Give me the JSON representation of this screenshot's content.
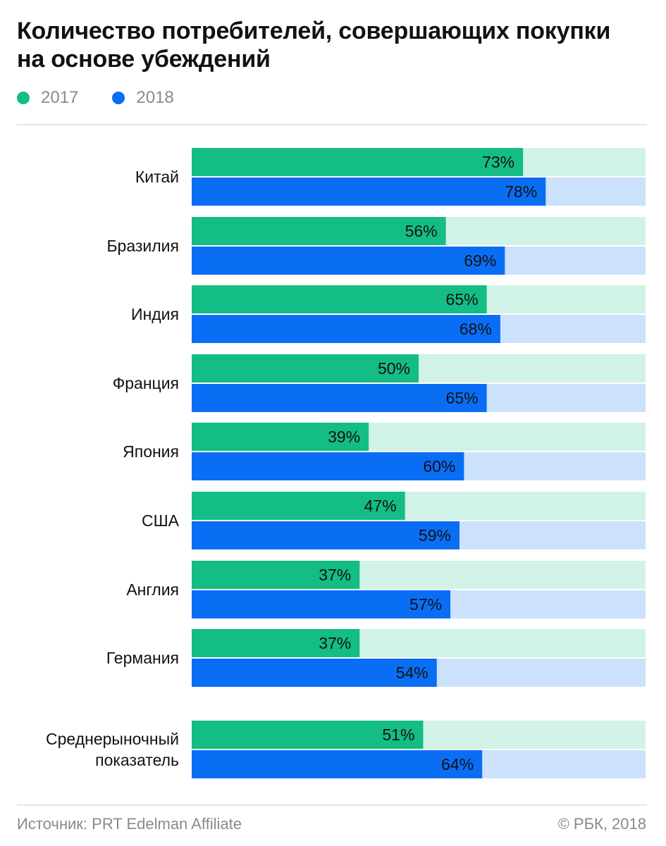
{
  "title": "Количество потребителей, совершающих покупки на основе убеждений",
  "legend": [
    {
      "label": "2017",
      "color": "#14bc86"
    },
    {
      "label": "2018",
      "color": "#0a6ef5"
    }
  ],
  "colors": {
    "track_2017": "#d1f2e7",
    "track_2018": "#cce1fb"
  },
  "chart_data": {
    "type": "bar",
    "orientation": "horizontal",
    "categories": [
      "Китай",
      "Бразилия",
      "Индия",
      "Франция",
      "Япония",
      "США",
      "Англия",
      "Германия",
      "Среднерыночный показатель"
    ],
    "category_label_lines": [
      [
        "Китай"
      ],
      [
        "Бразилия"
      ],
      [
        "Индия"
      ],
      [
        "Франция"
      ],
      [
        "Япония"
      ],
      [
        "США"
      ],
      [
        "Англия"
      ],
      [
        "Германия"
      ],
      [
        "Среднерыночный",
        "показатель"
      ]
    ],
    "series": [
      {
        "name": "2017",
        "values": [
          73,
          56,
          65,
          50,
          39,
          47,
          37,
          37,
          51
        ]
      },
      {
        "name": "2018",
        "values": [
          78,
          69,
          68,
          65,
          60,
          59,
          57,
          54,
          64
        ]
      }
    ],
    "value_suffix": "%",
    "xlim": [
      0,
      100
    ],
    "grid": false,
    "legend_position": "top-left"
  },
  "footer": {
    "source": "Источник: PRT Edelman Affiliate",
    "copyright": "© РБК, 2018"
  }
}
